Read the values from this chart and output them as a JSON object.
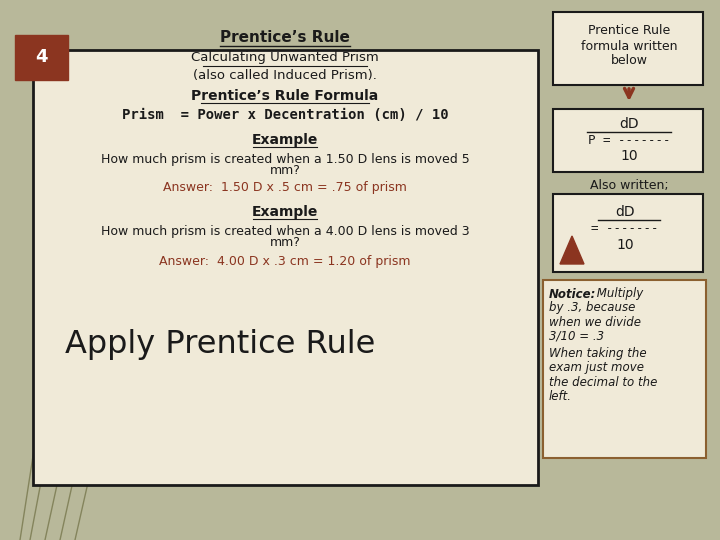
{
  "bg_color": "#b8b89a",
  "main_box_bg": "#f0ead8",
  "main_box_border": "#1a1a1a",
  "right_box_bg": "#f0ead8",
  "right_box_border": "#1a1a1a",
  "notice_box_border": "#8b6030",
  "tab_color": "#8b3520",
  "tab_number": "4",
  "title1": "Prentice’s Rule",
  "title2": "Calculating Unwanted Prism",
  "title3": "(also called Induced Prism).",
  "formula_title": "Prentice’s Rule Formula",
  "formula_body": "Prism  = Power x Decentration (cm) / 10",
  "example1_title": "Example",
  "example1_q_l1": "How much prism is created when a 1.50 D lens is moved 5",
  "example1_q_l2": "mm?",
  "answer1": "Answer:  1.50 D x .5 cm = .75 of prism",
  "example2_title": "Example",
  "example2_q_l1": "How much prism is created when a 4.00 D lens is moved 3",
  "example2_q_l2": "mm?",
  "answer2": "Answer:  4.00 D x .3 cm = 1.20 of prism",
  "bottom_big": "Apply Prentice Rule",
  "right_top_l1": "Prentice Rule",
  "right_top_l2": "formula written",
  "right_top_l3": "below",
  "fbox1_l1": "dD",
  "fbox1_l2": "P = -------",
  "fbox1_l3": "10",
  "also_written": "Also written;",
  "fbox2_l1": "dD",
  "fbox2_l2": "= -------",
  "fbox2_l3": "10",
  "notice_bold": "Notice:",
  "notice_rest": " Multiply",
  "notice_l2": "by .3, because",
  "notice_l3": "when we divide",
  "notice_l4": "3/10 = .3",
  "when_l1": "When taking the",
  "when_l2": "exam just move",
  "when_l3": "the decimal to the",
  "when_l4": "left.",
  "answer_color": "#8b3520",
  "grass_lines": [
    [
      45,
      0,
      130,
      390
    ],
    [
      60,
      0,
      155,
      430
    ],
    [
      30,
      0,
      100,
      370
    ],
    [
      75,
      0,
      170,
      420
    ],
    [
      20,
      0,
      75,
      355
    ]
  ]
}
